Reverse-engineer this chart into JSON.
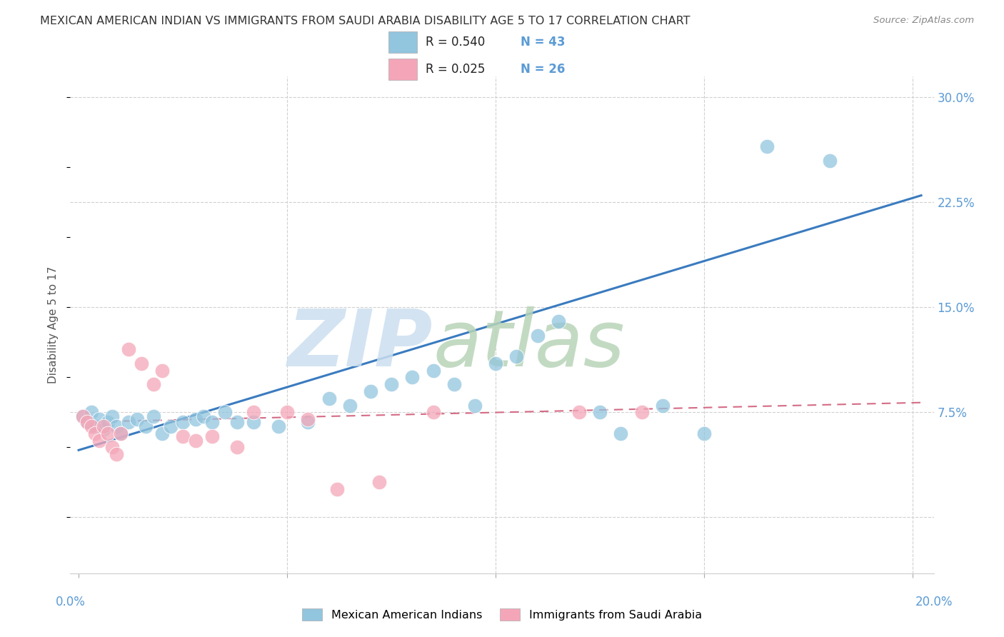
{
  "title": "MEXICAN AMERICAN INDIAN VS IMMIGRANTS FROM SAUDI ARABIA DISABILITY AGE 5 TO 17 CORRELATION CHART",
  "source": "Source: ZipAtlas.com",
  "ylabel": "Disability Age 5 to 17",
  "ytick_values": [
    0.0,
    0.075,
    0.15,
    0.225,
    0.3
  ],
  "xtick_values": [
    0.0,
    0.05,
    0.1,
    0.15,
    0.2
  ],
  "xlim": [
    -0.002,
    0.205
  ],
  "ylim": [
    -0.04,
    0.315
  ],
  "legend_blue_r": "R = 0.540",
  "legend_blue_n": "N = 43",
  "legend_pink_r": "R = 0.025",
  "legend_pink_n": "N = 26",
  "legend_label_blue": "Mexican American Indians",
  "legend_label_pink": "Immigrants from Saudi Arabia",
  "blue_color": "#92c5de",
  "pink_color": "#f4a6b8",
  "line_blue": "#3a7bbf",
  "line_pink": "#d46b85",
  "blue_scatter_x": [
    0.001,
    0.002,
    0.003,
    0.004,
    0.005,
    0.006,
    0.007,
    0.008,
    0.009,
    0.01,
    0.012,
    0.014,
    0.016,
    0.018,
    0.02,
    0.022,
    0.025,
    0.028,
    0.03,
    0.032,
    0.035,
    0.038,
    0.042,
    0.048,
    0.055,
    0.06,
    0.065,
    0.07,
    0.075,
    0.08,
    0.085,
    0.09,
    0.095,
    0.1,
    0.105,
    0.11,
    0.115,
    0.125,
    0.13,
    0.14,
    0.15,
    0.165,
    0.18
  ],
  "blue_scatter_y": [
    0.072,
    0.068,
    0.075,
    0.065,
    0.07,
    0.063,
    0.068,
    0.072,
    0.065,
    0.06,
    0.068,
    0.07,
    0.065,
    0.072,
    0.06,
    0.065,
    0.068,
    0.07,
    0.072,
    0.068,
    0.075,
    0.068,
    0.068,
    0.065,
    0.068,
    0.085,
    0.08,
    0.09,
    0.095,
    0.1,
    0.105,
    0.095,
    0.08,
    0.11,
    0.115,
    0.13,
    0.14,
    0.075,
    0.06,
    0.08,
    0.06,
    0.265,
    0.255
  ],
  "pink_scatter_x": [
    0.001,
    0.002,
    0.003,
    0.004,
    0.005,
    0.006,
    0.007,
    0.008,
    0.009,
    0.01,
    0.012,
    0.015,
    0.018,
    0.02,
    0.025,
    0.028,
    0.032,
    0.038,
    0.042,
    0.05,
    0.055,
    0.062,
    0.072,
    0.085,
    0.12,
    0.135
  ],
  "pink_scatter_y": [
    0.072,
    0.068,
    0.065,
    0.06,
    0.055,
    0.065,
    0.06,
    0.05,
    0.045,
    0.06,
    0.12,
    0.11,
    0.095,
    0.105,
    0.058,
    0.055,
    0.058,
    0.05,
    0.075,
    0.075,
    0.07,
    0.02,
    0.025,
    0.075,
    0.075,
    0.075
  ],
  "blue_line_x": [
    0.0,
    0.202
  ],
  "blue_line_y": [
    0.048,
    0.23
  ],
  "pink_line_x": [
    0.0,
    0.202
  ],
  "pink_line_y": [
    0.068,
    0.082
  ],
  "background_color": "#ffffff",
  "grid_color": "#d0d0d0",
  "title_color": "#333333",
  "tick_color": "#5b9bd5",
  "watermark_zip_color": "#ccdff0",
  "watermark_atlas_color": "#b8d4b8"
}
